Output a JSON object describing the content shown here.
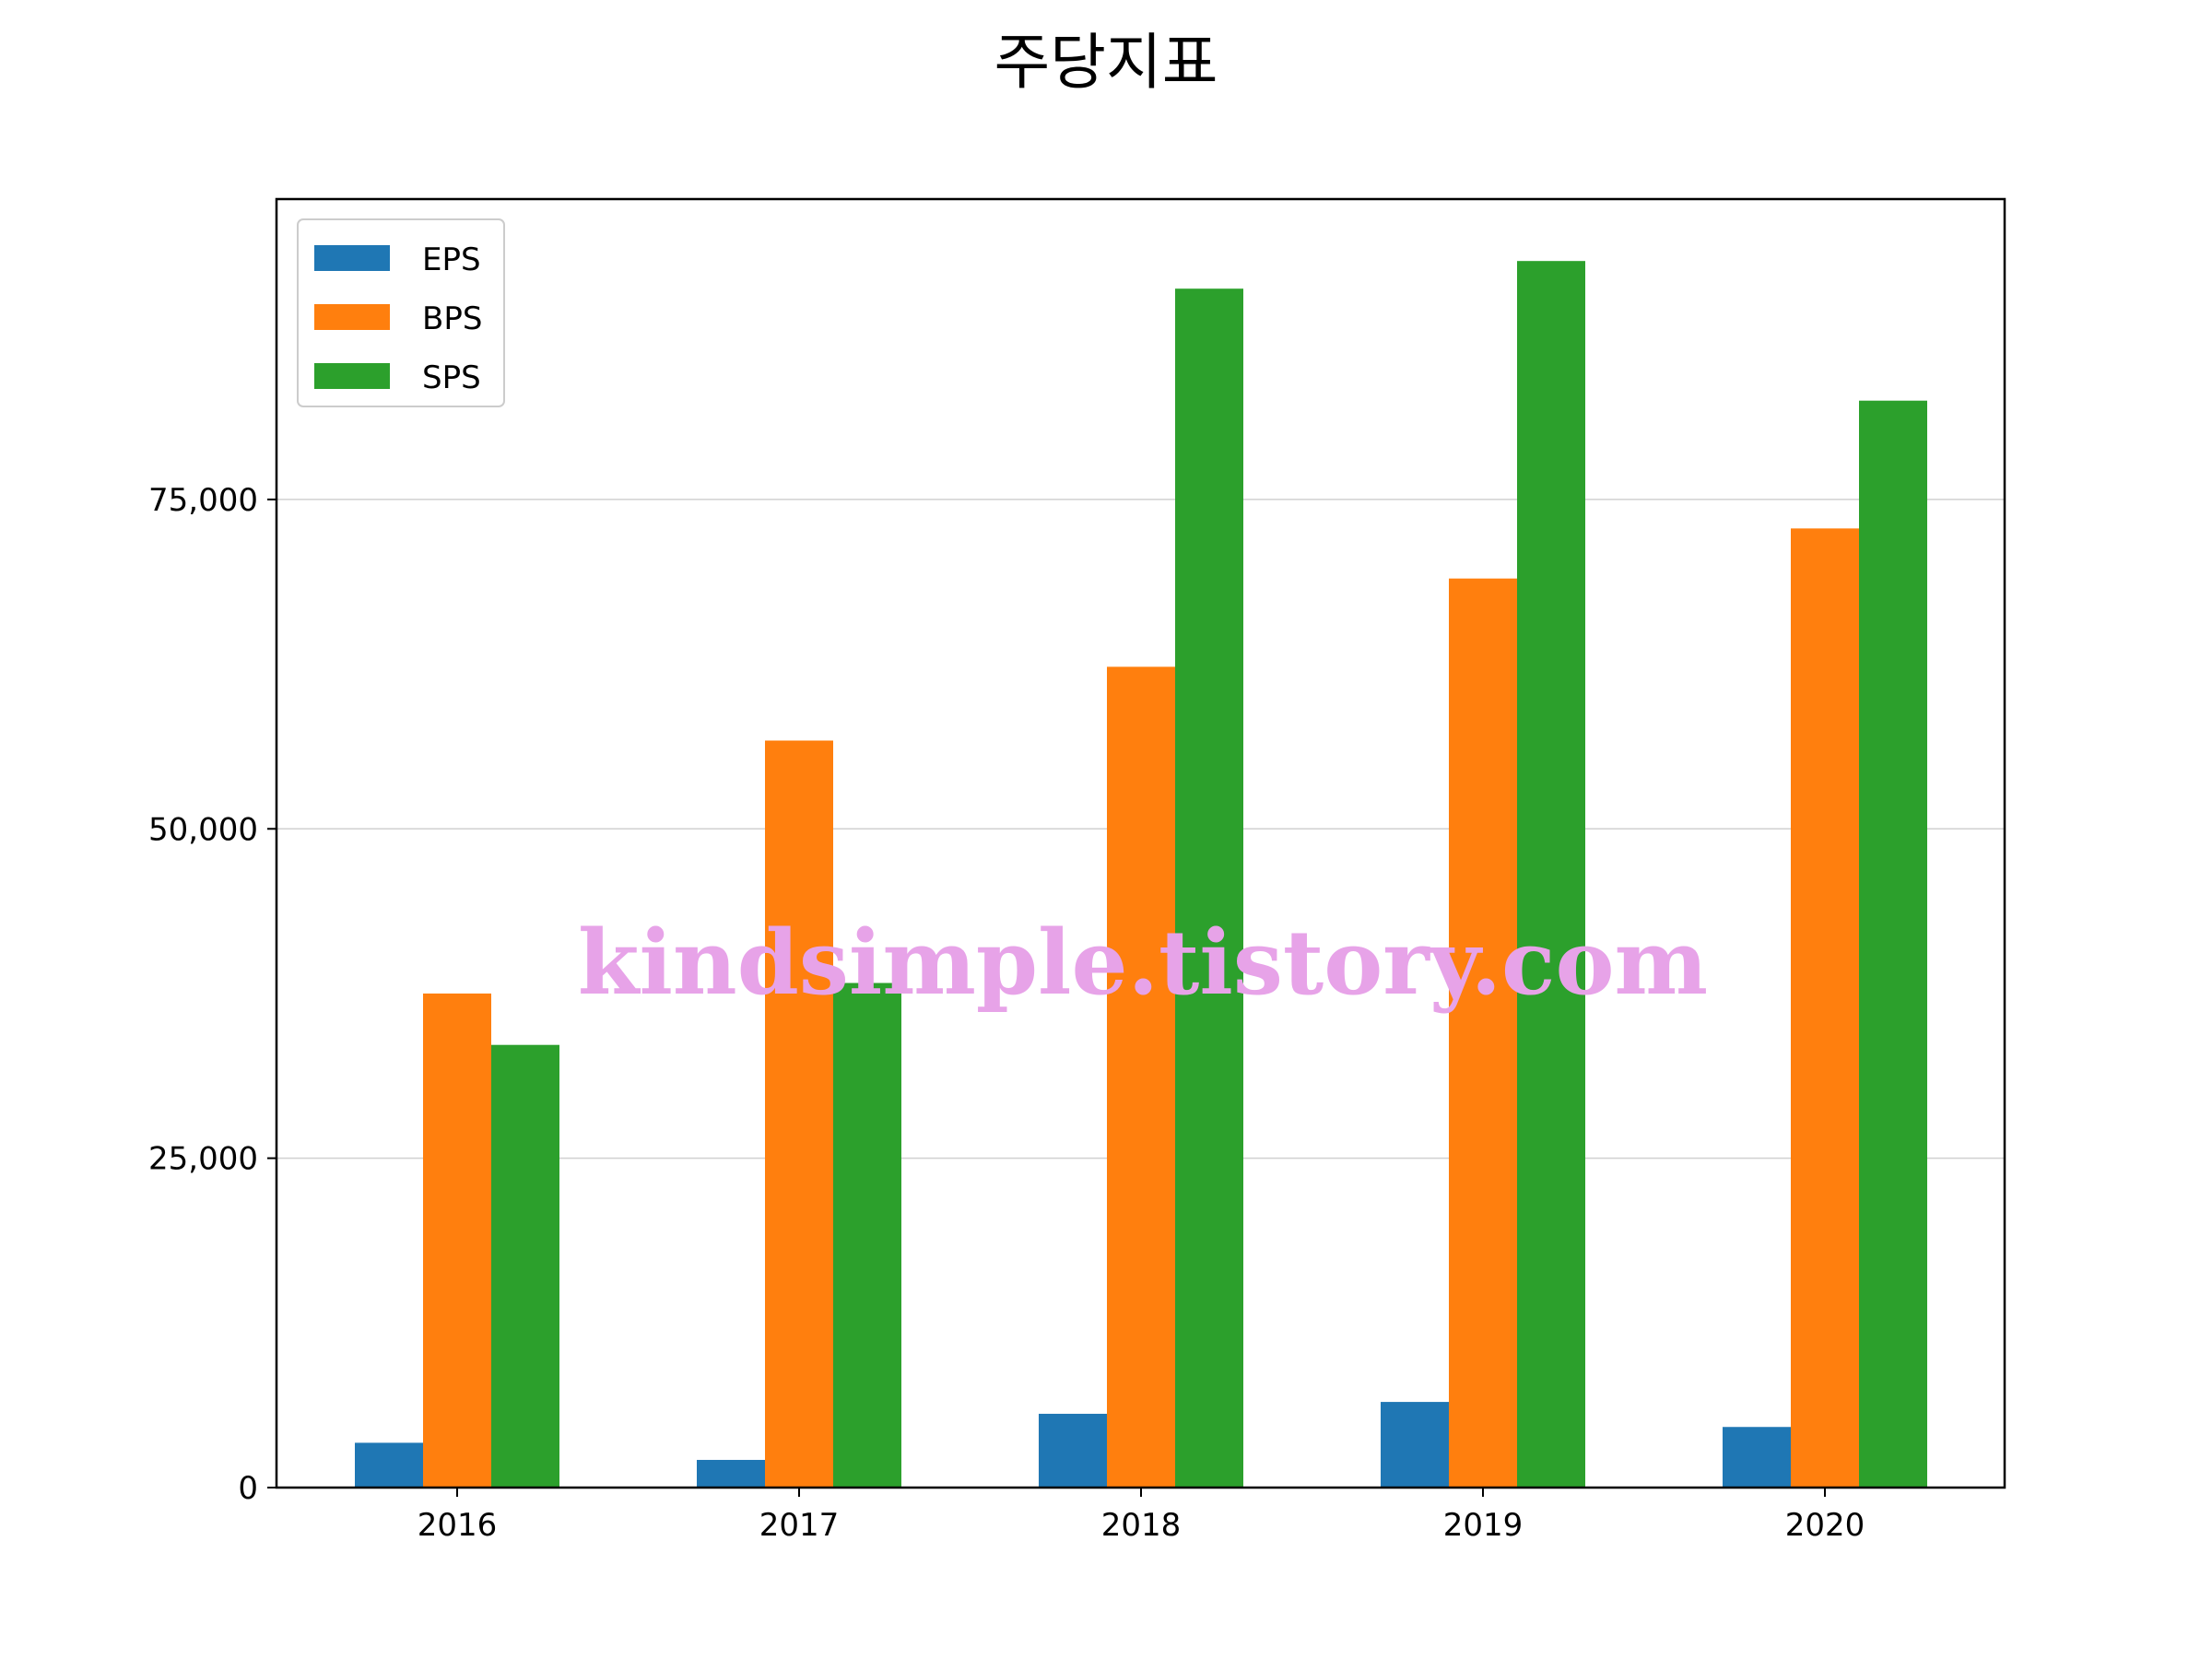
{
  "chart_data": {
    "type": "bar",
    "title": "주당지표",
    "xlabel": "",
    "ylabel": "",
    "categories": [
      "2016",
      "2017",
      "2018",
      "2019",
      "2020"
    ],
    "series": [
      {
        "name": "EPS",
        "color": "#1f77b4",
        "values": [
          3400,
          2100,
          5600,
          6500,
          4600
        ]
      },
      {
        "name": "BPS",
        "color": "#ff7f0e",
        "values": [
          37500,
          56700,
          62300,
          69000,
          72800
        ]
      },
      {
        "name": "SPS",
        "color": "#2ca02c",
        "values": [
          33600,
          38300,
          91000,
          93100,
          82500
        ]
      }
    ],
    "ylim": [
      0,
      97800
    ],
    "yticks": [
      0,
      25000,
      50000,
      75000
    ],
    "ytick_labels": [
      "0",
      "25,000",
      "50,000",
      "75,000"
    ],
    "grid": "y",
    "legend_position": "top-left"
  },
  "watermark": "kindsimple.tistory.com"
}
